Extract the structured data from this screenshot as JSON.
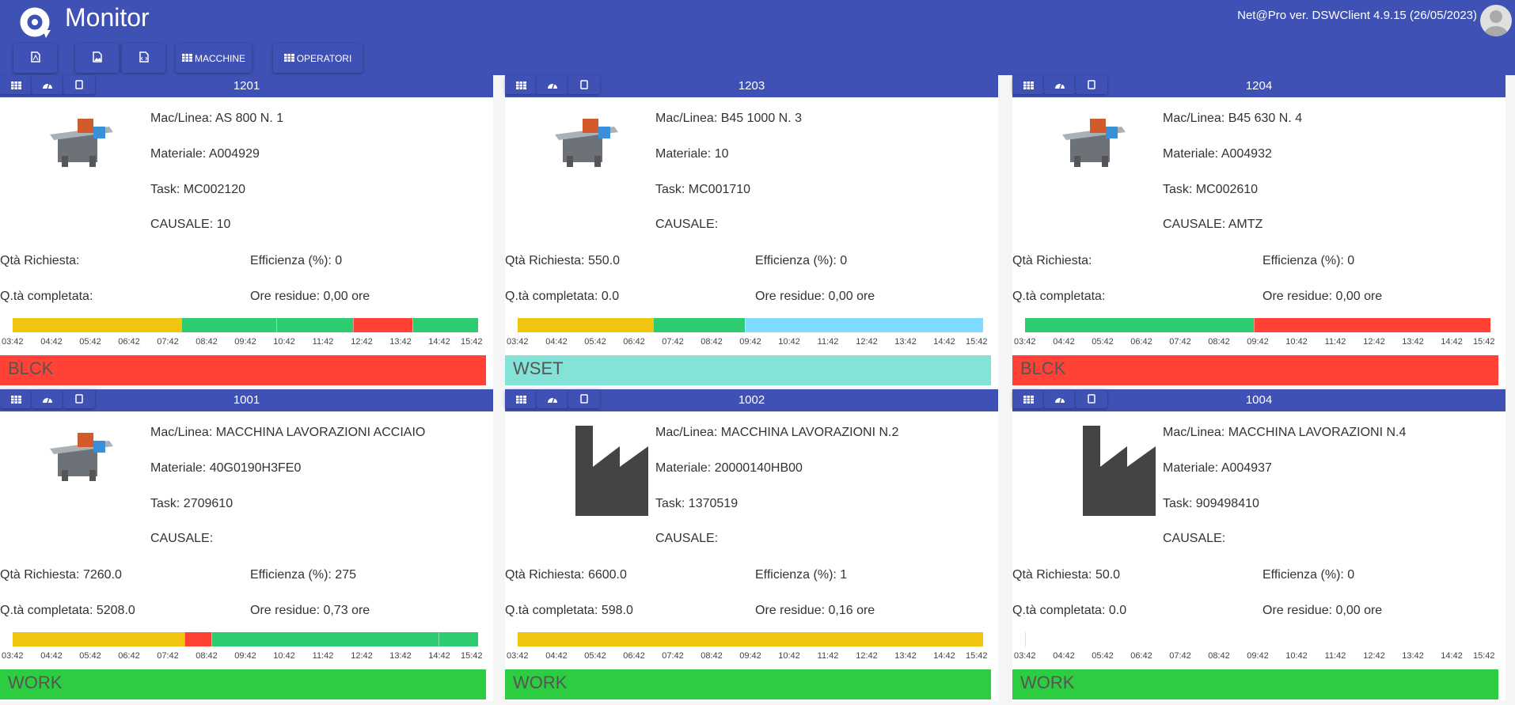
{
  "header": {
    "title": "Monitor",
    "version": "Net@Pro ver. DSWClient 4.9.15 (26/05/2023)"
  },
  "toolbar": {
    "buttons": [
      {
        "icon": "pdf-file-icon",
        "label": ""
      },
      {
        "icon": "image-file-icon",
        "label": ""
      },
      {
        "icon": "code-file-icon",
        "label": ""
      },
      {
        "icon": "grid-icon",
        "label": "MACCHINE"
      },
      {
        "icon": "grid-icon",
        "label": "OPERATORI"
      }
    ]
  },
  "labels": {
    "mac": "Mac/Linea: ",
    "mat": "Materiale: ",
    "task": "Task: ",
    "causale": "CAUSALE: ",
    "qreq": "Qtà Richiesta: ",
    "qcomp": "Q.tà completata: ",
    "eff": "Efficienza (%): ",
    "ore": "Ore residue: "
  },
  "timeline": {
    "ticks": [
      "03:42",
      "04:42",
      "05:42",
      "06:42",
      "07:42",
      "08:42",
      "09:42",
      "10:42",
      "11:42",
      "12:42",
      "13:42",
      "14:42",
      "15:42"
    ],
    "start": "03:42",
    "end": "15:42"
  },
  "colors": {
    "yellow": "#f1c40f",
    "green": "#2ecc71",
    "red": "#ff4136",
    "lightblue": "#7fdbff",
    "BLCK": "#ff4136",
    "WSET": "#83e3d6",
    "WORK": "#2ecc40"
  },
  "cards": [
    {
      "id": "1201",
      "image": "machine-photo",
      "mac": "AS 800 N. 1",
      "mat": "A004929",
      "task": "MC002120",
      "causale": "10",
      "qreq": "",
      "qcomp": "",
      "eff": "0",
      "ore": "0,00 ore",
      "status": "BLCK",
      "segments": [
        {
          "from": "03:42",
          "to": "08:03",
          "color": "yellow"
        },
        {
          "from": "08:03",
          "to": "10:30",
          "color": "green"
        },
        {
          "from": "10:30",
          "to": "12:29",
          "color": "green"
        },
        {
          "from": "12:29",
          "to": "14:00",
          "color": "red"
        },
        {
          "from": "14:00",
          "to": "15:42",
          "color": "green"
        }
      ]
    },
    {
      "id": "1203",
      "image": "machine-photo",
      "mac": "B45 1000 N. 3",
      "mat": "10",
      "task": "MC001710",
      "causale": "",
      "qreq": "550.0",
      "qcomp": "0.0",
      "eff": "0",
      "ore": "0,00 ore",
      "status": "WSET",
      "segments": [
        {
          "from": "03:42",
          "to": "07:11",
          "color": "yellow"
        },
        {
          "from": "07:11",
          "to": "09:34",
          "color": "green"
        },
        {
          "from": "09:34",
          "to": "15:42",
          "color": "lightblue"
        }
      ]
    },
    {
      "id": "1204",
      "image": "machine-photo",
      "mac": "B45 630 N. 4",
      "mat": "A004932",
      "task": "MC002610",
      "causale": "AMTZ",
      "qreq": "",
      "qcomp": "",
      "eff": "0",
      "ore": "0,00 ore",
      "status": "BLCK",
      "segments": [
        {
          "from": "03:42",
          "to": "09:36",
          "color": "green"
        },
        {
          "from": "09:36",
          "to": "15:42",
          "color": "red"
        }
      ]
    },
    {
      "id": "1001",
      "image": "machine-photo",
      "mac": "MACCHINA LAVORAZIONI ACCIAIO",
      "mat": "40G0190H3FE0",
      "task": "2709610",
      "causale": "",
      "qreq": "7260.0",
      "qcomp": "5208.0",
      "eff": "275",
      "ore": "0,73 ore",
      "status": "WORK",
      "segments": [
        {
          "from": "03:42",
          "to": "08:08",
          "color": "yellow"
        },
        {
          "from": "08:08",
          "to": "08:49",
          "color": "red"
        },
        {
          "from": "08:49",
          "to": "14:41",
          "color": "green"
        },
        {
          "from": "14:41",
          "to": "15:42",
          "color": "green"
        }
      ]
    },
    {
      "id": "1002",
      "image": "factory-icon",
      "mac": "MACCHINA LAVORAZIONI N.2",
      "mat": "20000140HB00",
      "task": "1370519",
      "causale": "",
      "qreq": "6600.0",
      "qcomp": "598.0",
      "eff": "1",
      "ore": "0,16 ore",
      "status": "WORK",
      "segments": [
        {
          "from": "03:42",
          "to": "15:42",
          "color": "yellow"
        }
      ]
    },
    {
      "id": "1004",
      "image": "factory-icon",
      "mac": "MACCHINA LAVORAZIONI N.4",
      "mat": "A004937",
      "task": "909498410",
      "causale": "",
      "qreq": "50.0",
      "qcomp": "0.0",
      "eff": "0",
      "ore": "0,00 ore",
      "status": "WORK",
      "segments": []
    }
  ]
}
